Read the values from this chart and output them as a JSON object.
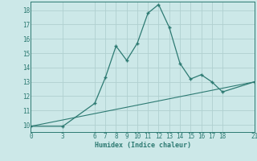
{
  "xlabel": "Humidex (Indice chaleur)",
  "bg_color": "#cce8e8",
  "grid_color": "#b0d0d0",
  "line_color": "#2d7a72",
  "x_ticks": [
    0,
    3,
    6,
    7,
    8,
    9,
    10,
    11,
    12,
    13,
    14,
    15,
    16,
    17,
    18,
    21
  ],
  "ylim": [
    9.5,
    18.6
  ],
  "xlim": [
    0,
    21
  ],
  "yticks": [
    10,
    11,
    12,
    13,
    14,
    15,
    16,
    17,
    18
  ],
  "curve1_x": [
    0,
    3,
    6,
    7,
    8,
    9,
    10,
    11,
    12,
    13,
    14,
    15,
    16,
    17,
    18,
    21
  ],
  "curve1_y": [
    9.9,
    9.9,
    11.5,
    13.3,
    15.5,
    14.5,
    15.7,
    17.8,
    18.4,
    16.8,
    14.3,
    13.2,
    13.5,
    13.0,
    12.3,
    13.0
  ],
  "curve2_x": [
    0,
    21
  ],
  "curve2_y": [
    9.9,
    13.0
  ]
}
